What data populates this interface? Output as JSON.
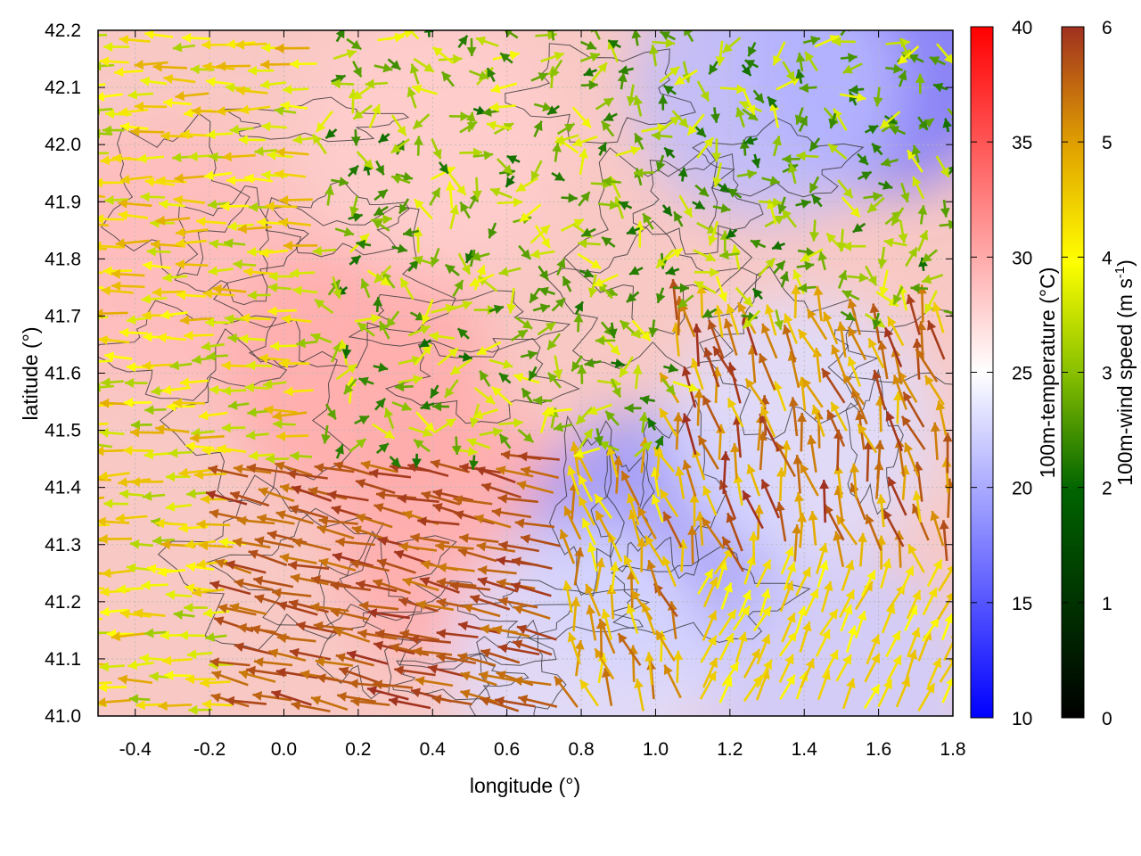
{
  "chart_data": {
    "type": "heatmap",
    "xlabel": "longitude (°)",
    "ylabel": "latitude (°)",
    "xlim": [
      -0.5,
      1.8
    ],
    "ylim": [
      41.0,
      42.2
    ],
    "xticks": [
      -0.4,
      -0.2,
      0.0,
      0.2,
      0.4,
      0.6,
      0.8,
      1.0,
      1.2,
      1.4,
      1.6,
      1.8
    ],
    "xtick_labels": [
      "-0.4",
      "-0.2",
      "0.0",
      "0.2",
      "0.4",
      "0.6",
      "0.8",
      "1.0",
      "1.2",
      "1.4",
      "1.6",
      "1.8"
    ],
    "yticks": [
      41.0,
      41.1,
      41.2,
      41.3,
      41.4,
      41.5,
      41.6,
      41.7,
      41.8,
      41.9,
      42.0,
      42.1,
      42.2
    ],
    "ytick_labels": [
      "41.0",
      "41.1",
      "41.2",
      "41.3",
      "41.4",
      "41.5",
      "41.6",
      "41.7",
      "41.8",
      "41.9",
      "42.0",
      "42.1",
      "42.2"
    ],
    "grid": true,
    "temperature": {
      "label": "100m-temperature (°C)",
      "range": [
        10,
        40
      ],
      "ticks": [
        10,
        15,
        20,
        25,
        30,
        35,
        40
      ],
      "tick_labels": [
        "10",
        "15",
        "20",
        "25",
        "30",
        "35",
        "40"
      ],
      "colors": {
        "low": "#0000ff",
        "mid": "#ffffff",
        "high": "#ff0000"
      }
    },
    "wind_speed": {
      "label_main": "100m-wind speed (m s",
      "label_sup": "-1",
      "label_end": ")",
      "range": [
        0,
        6
      ],
      "ticks": [
        0,
        1,
        2,
        3,
        4,
        5,
        6
      ],
      "tick_labels": [
        "0",
        "1",
        "2",
        "3",
        "4",
        "5",
        "6"
      ],
      "colors": [
        "#000000",
        "#006400",
        "#88c000",
        "#ffff00",
        "#e0a000",
        "#a03020"
      ]
    },
    "temperature_regions_approx": [
      {
        "lon": -0.3,
        "lat": 41.8,
        "temp": 29
      },
      {
        "lon": 0.2,
        "lat": 41.6,
        "temp": 30
      },
      {
        "lon": 0.5,
        "lat": 41.3,
        "temp": 30
      },
      {
        "lon": 0.4,
        "lat": 42.0,
        "temp": 28
      },
      {
        "lon": 1.0,
        "lat": 41.3,
        "temp": 19
      },
      {
        "lon": 1.5,
        "lat": 41.05,
        "temp": 22
      },
      {
        "lon": 1.6,
        "lat": 42.15,
        "temp": 17
      },
      {
        "lon": 1.3,
        "lat": 42.1,
        "temp": 21
      },
      {
        "lon": 1.4,
        "lat": 41.5,
        "temp": 23
      },
      {
        "lon": 0.8,
        "lat": 41.1,
        "temp": 23
      }
    ],
    "wind_regimes_approx": [
      {
        "region": "west",
        "direction_deg_from_east": 175,
        "speed": 3.8
      },
      {
        "region": "southwest jet",
        "direction_deg_from_east": 160,
        "speed": 5.8
      },
      {
        "region": "north-central",
        "direction_deg_from_east": 90,
        "speed": 2.5
      },
      {
        "region": "east",
        "direction_deg_from_east": 100,
        "speed": 5.2
      },
      {
        "region": "southeast sea",
        "direction_deg_from_east": 60,
        "speed": 4.0
      }
    ]
  }
}
